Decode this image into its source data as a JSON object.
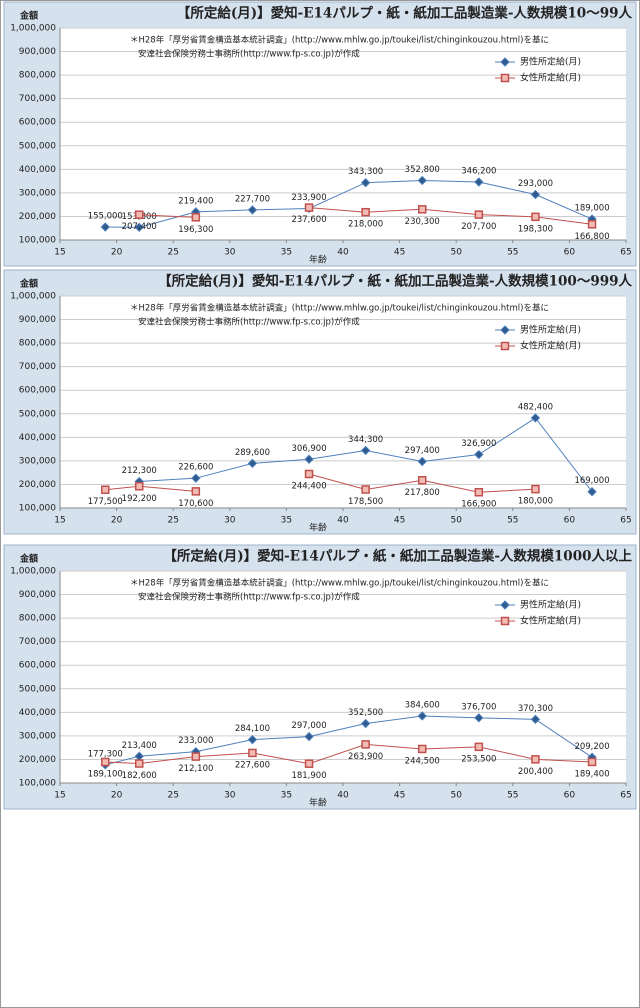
{
  "chart_data": [
    {
      "type": "line",
      "title": "【所定給(月)】愛知-E14パルプ・紙・紙加工品製造業-人数規模10～99人",
      "y_label": "金額",
      "x_label": "年齢",
      "notes": [
        "＊H28年「厚労省賃金構造基本統計調査」(http://www.mhlw.go.jp/toukei/list/chinginkouzou.html)を基に",
        "安達社会保険労務士事務所(http://www.fp-s.co.jp)が作成"
      ],
      "x": [
        19,
        22,
        27,
        32,
        37,
        42,
        47,
        52,
        57,
        62
      ],
      "series": [
        {
          "name": "男性所定給(月)",
          "color": "#4f81bd",
          "values": [
            155000,
            153800,
            219400,
            227700,
            233900,
            343300,
            352800,
            346200,
            293000,
            189000
          ],
          "value_labels": [
            "155,000",
            "153,800",
            "219,400",
            "227,700",
            "233,900",
            "343,300",
            "352,800",
            "346,200",
            "293,000",
            "189,000"
          ]
        },
        {
          "name": "女性所定給(月)",
          "color": "#c0504d",
          "values": [
            null,
            207400,
            196300,
            null,
            237600,
            218000,
            230300,
            207700,
            198300,
            166800
          ],
          "value_labels": [
            null,
            "207,400",
            "196,300",
            null,
            "237,600",
            "218,000",
            "230,300",
            "207,700",
            "198,300",
            "166,800"
          ]
        }
      ],
      "xlim": [
        15,
        65
      ],
      "xticks": [
        15,
        20,
        25,
        30,
        35,
        40,
        45,
        50,
        55,
        60,
        65
      ],
      "ylim": [
        100000,
        1000000
      ],
      "yticks": [
        {
          "value": 100000,
          "label": "100,000"
        },
        {
          "value": 200000,
          "label": "200,000"
        },
        {
          "value": 300000,
          "label": "300,000"
        },
        {
          "value": 400000,
          "label": "400,000"
        },
        {
          "value": 500000,
          "label": "500,000"
        },
        {
          "value": 600000,
          "label": "600,000"
        },
        {
          "value": 700000,
          "label": "700,000"
        },
        {
          "value": 800000,
          "label": "800,000"
        },
        {
          "value": 900000,
          "label": "900,000"
        },
        {
          "value": 1000000,
          "label": "1,000,000"
        }
      ],
      "grid": true,
      "legend": "right"
    },
    {
      "type": "line",
      "title": "【所定給(月)】愛知-E14パルプ・紙・紙加工品製造業-人数規模100～999人",
      "y_label": "金額",
      "x_label": "年齢",
      "notes": [
        "＊H28年「厚労省賃金構造基本統計調査」(http://www.mhlw.go.jp/toukei/list/chinginkouzou.html)を基に",
        "安達社会保険労務士事務所(http://www.fp-s.co.jp)が作成"
      ],
      "x": [
        19,
        22,
        27,
        32,
        37,
        42,
        47,
        52,
        57,
        62
      ],
      "series": [
        {
          "name": "男性所定給(月)",
          "color": "#4f81bd",
          "values": [
            null,
            212300,
            226600,
            289600,
            306900,
            344300,
            297400,
            326900,
            482400,
            169000
          ],
          "value_labels": [
            null,
            "212,300",
            "226,600",
            "289,600",
            "306,900",
            "344,300",
            "297,400",
            "326,900",
            "482,400",
            "169,000"
          ]
        },
        {
          "name": "女性所定給(月)",
          "color": "#c0504d",
          "values": [
            177500,
            192200,
            170600,
            null,
            244400,
            178500,
            217800,
            166900,
            180000,
            null
          ],
          "value_labels": [
            "177,500",
            "192,200",
            "170,600",
            null,
            "244,400",
            "178,500",
            "217,800",
            "166,900",
            "180,000",
            null
          ]
        }
      ],
      "xlim": [
        15,
        65
      ],
      "xticks": [
        15,
        20,
        25,
        30,
        35,
        40,
        45,
        50,
        55,
        60,
        65
      ],
      "ylim": [
        100000,
        1000000
      ],
      "yticks": [
        {
          "value": 100000,
          "label": "100,000"
        },
        {
          "value": 200000,
          "label": "200,000"
        },
        {
          "value": 300000,
          "label": "300,000"
        },
        {
          "value": 400000,
          "label": "400,000"
        },
        {
          "value": 500000,
          "label": "500,000"
        },
        {
          "value": 600000,
          "label": "600,000"
        },
        {
          "value": 700000,
          "label": "700,000"
        },
        {
          "value": 800000,
          "label": "800,000"
        },
        {
          "value": 900000,
          "label": "900,000"
        },
        {
          "value": 1000000,
          "label": "1,000,000"
        }
      ],
      "grid": true,
      "legend": "right"
    },
    {
      "type": "line",
      "title": "【所定給(月)】愛知-E14パルプ・紙・紙加工品製造業-人数規模1000人以上",
      "y_label": "金額",
      "x_label": "年齢",
      "notes": [
        "＊H28年「厚労省賃金構造基本統計調査」(http://www.mhlw.go.jp/toukei/list/chinginkouzou.html)を基に",
        "安達社会保険労務士事務所(http://www.fp-s.co.jp)が作成"
      ],
      "x": [
        19,
        22,
        27,
        32,
        37,
        42,
        47,
        52,
        57,
        62
      ],
      "series": [
        {
          "name": "男性所定給(月)",
          "color": "#4f81bd",
          "values": [
            177300,
            213400,
            233000,
            284100,
            297000,
            352500,
            384600,
            376700,
            370300,
            209200
          ],
          "value_labels": [
            "177,300",
            "213,400",
            "233,000",
            "284,100",
            "297,000",
            "352,500",
            "384,600",
            "376,700",
            "370,300",
            "209,200"
          ]
        },
        {
          "name": "女性所定給(月)",
          "color": "#c0504d",
          "values": [
            189100,
            182600,
            212100,
            227600,
            181900,
            263900,
            244500,
            253500,
            200400,
            189400
          ],
          "value_labels": [
            "189,100",
            "182,600",
            "212,100",
            "227,600",
            "181,900",
            "263,900",
            "244,500",
            "253,500",
            "200,400",
            "189,400"
          ]
        }
      ],
      "xlim": [
        15,
        65
      ],
      "xticks": [
        15,
        20,
        25,
        30,
        35,
        40,
        45,
        50,
        55,
        60,
        65
      ],
      "ylim": [
        100000,
        1000000
      ],
      "yticks": [
        {
          "value": 100000,
          "label": "100,000"
        },
        {
          "value": 200000,
          "label": "200,000"
        },
        {
          "value": 300000,
          "label": "300,000"
        },
        {
          "value": 400000,
          "label": "400,000"
        },
        {
          "value": 500000,
          "label": "500,000"
        },
        {
          "value": 600000,
          "label": "600,000"
        },
        {
          "value": 700000,
          "label": "700,000"
        },
        {
          "value": 800000,
          "label": "800,000"
        },
        {
          "value": 900000,
          "label": "900,000"
        },
        {
          "value": 1000000,
          "label": "1,000,000"
        }
      ],
      "grid": true,
      "legend": "right"
    }
  ]
}
